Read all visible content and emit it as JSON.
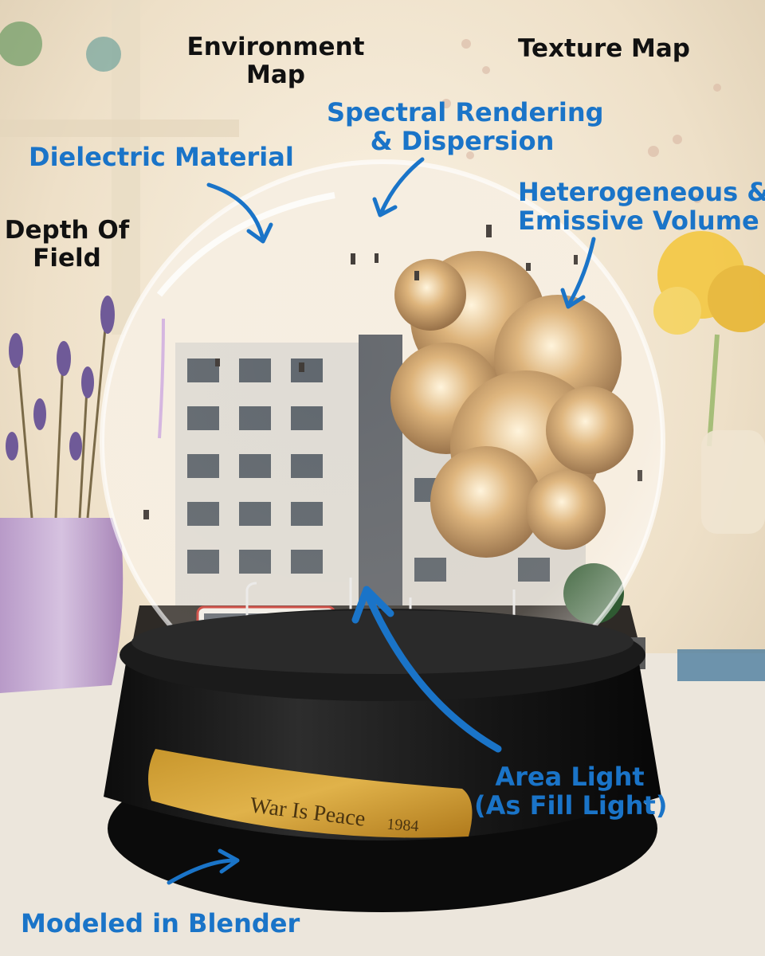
{
  "annotations": {
    "environment_map": [
      "Environment",
      "Map"
    ],
    "texture_map": "Texture Map",
    "spectral_rendering": [
      "Spectral Rendering",
      "& Dispersion"
    ],
    "dielectric_material": "Dielectric Material",
    "heterogeneous_volume": [
      "Heterogeneous &",
      "Emissive Volume"
    ],
    "depth_of_field": [
      "Depth Of",
      "Field"
    ],
    "area_light": [
      "Area Light",
      "(As Fill Light)"
    ],
    "modeled_in": "Modeled in Blender"
  },
  "plaque": {
    "text": "War Is Peace",
    "year": "1984"
  },
  "colors": {
    "annotation_blue": "#1a74c8",
    "annotation_black": "#111111",
    "plaque_gold": "#c8962c"
  }
}
